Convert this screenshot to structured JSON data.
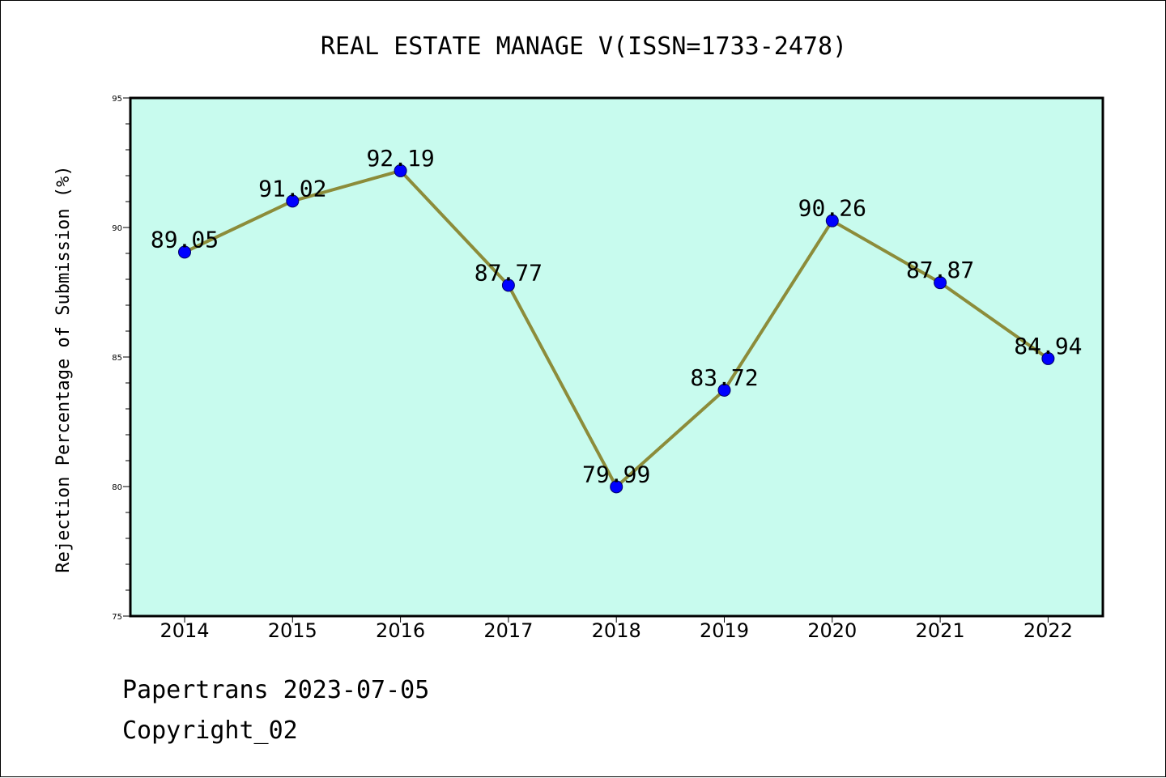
{
  "chart_data": {
    "type": "line",
    "title": "REAL ESTATE MANAGE V(ISSN=1733-2478)",
    "xlabel": "",
    "ylabel": "Rejection Percentage of Submission (%)",
    "categories": [
      "2014",
      "2015",
      "2016",
      "2017",
      "2018",
      "2019",
      "2020",
      "2021",
      "2022"
    ],
    "values": [
      89.05,
      91.02,
      92.19,
      87.77,
      79.99,
      83.72,
      90.26,
      87.87,
      84.94
    ],
    "data_labels": [
      "89.05",
      "91.02",
      "92.19",
      "87.77",
      "79.99",
      "83.72",
      "90.26",
      "87.87",
      "84.94"
    ],
    "y_ticks": [
      "75",
      "80",
      "85",
      "90",
      "95"
    ],
    "ylim": [
      75,
      95
    ],
    "grid": false,
    "legend": "none",
    "colors": {
      "plot_background": "#c8fbee",
      "line": "#8c8c3a",
      "marker": "#0000ff",
      "marker_edge": "#000066"
    }
  },
  "footer": {
    "line1": "Papertrans 2023-07-05",
    "line2": "Copyright_02"
  }
}
